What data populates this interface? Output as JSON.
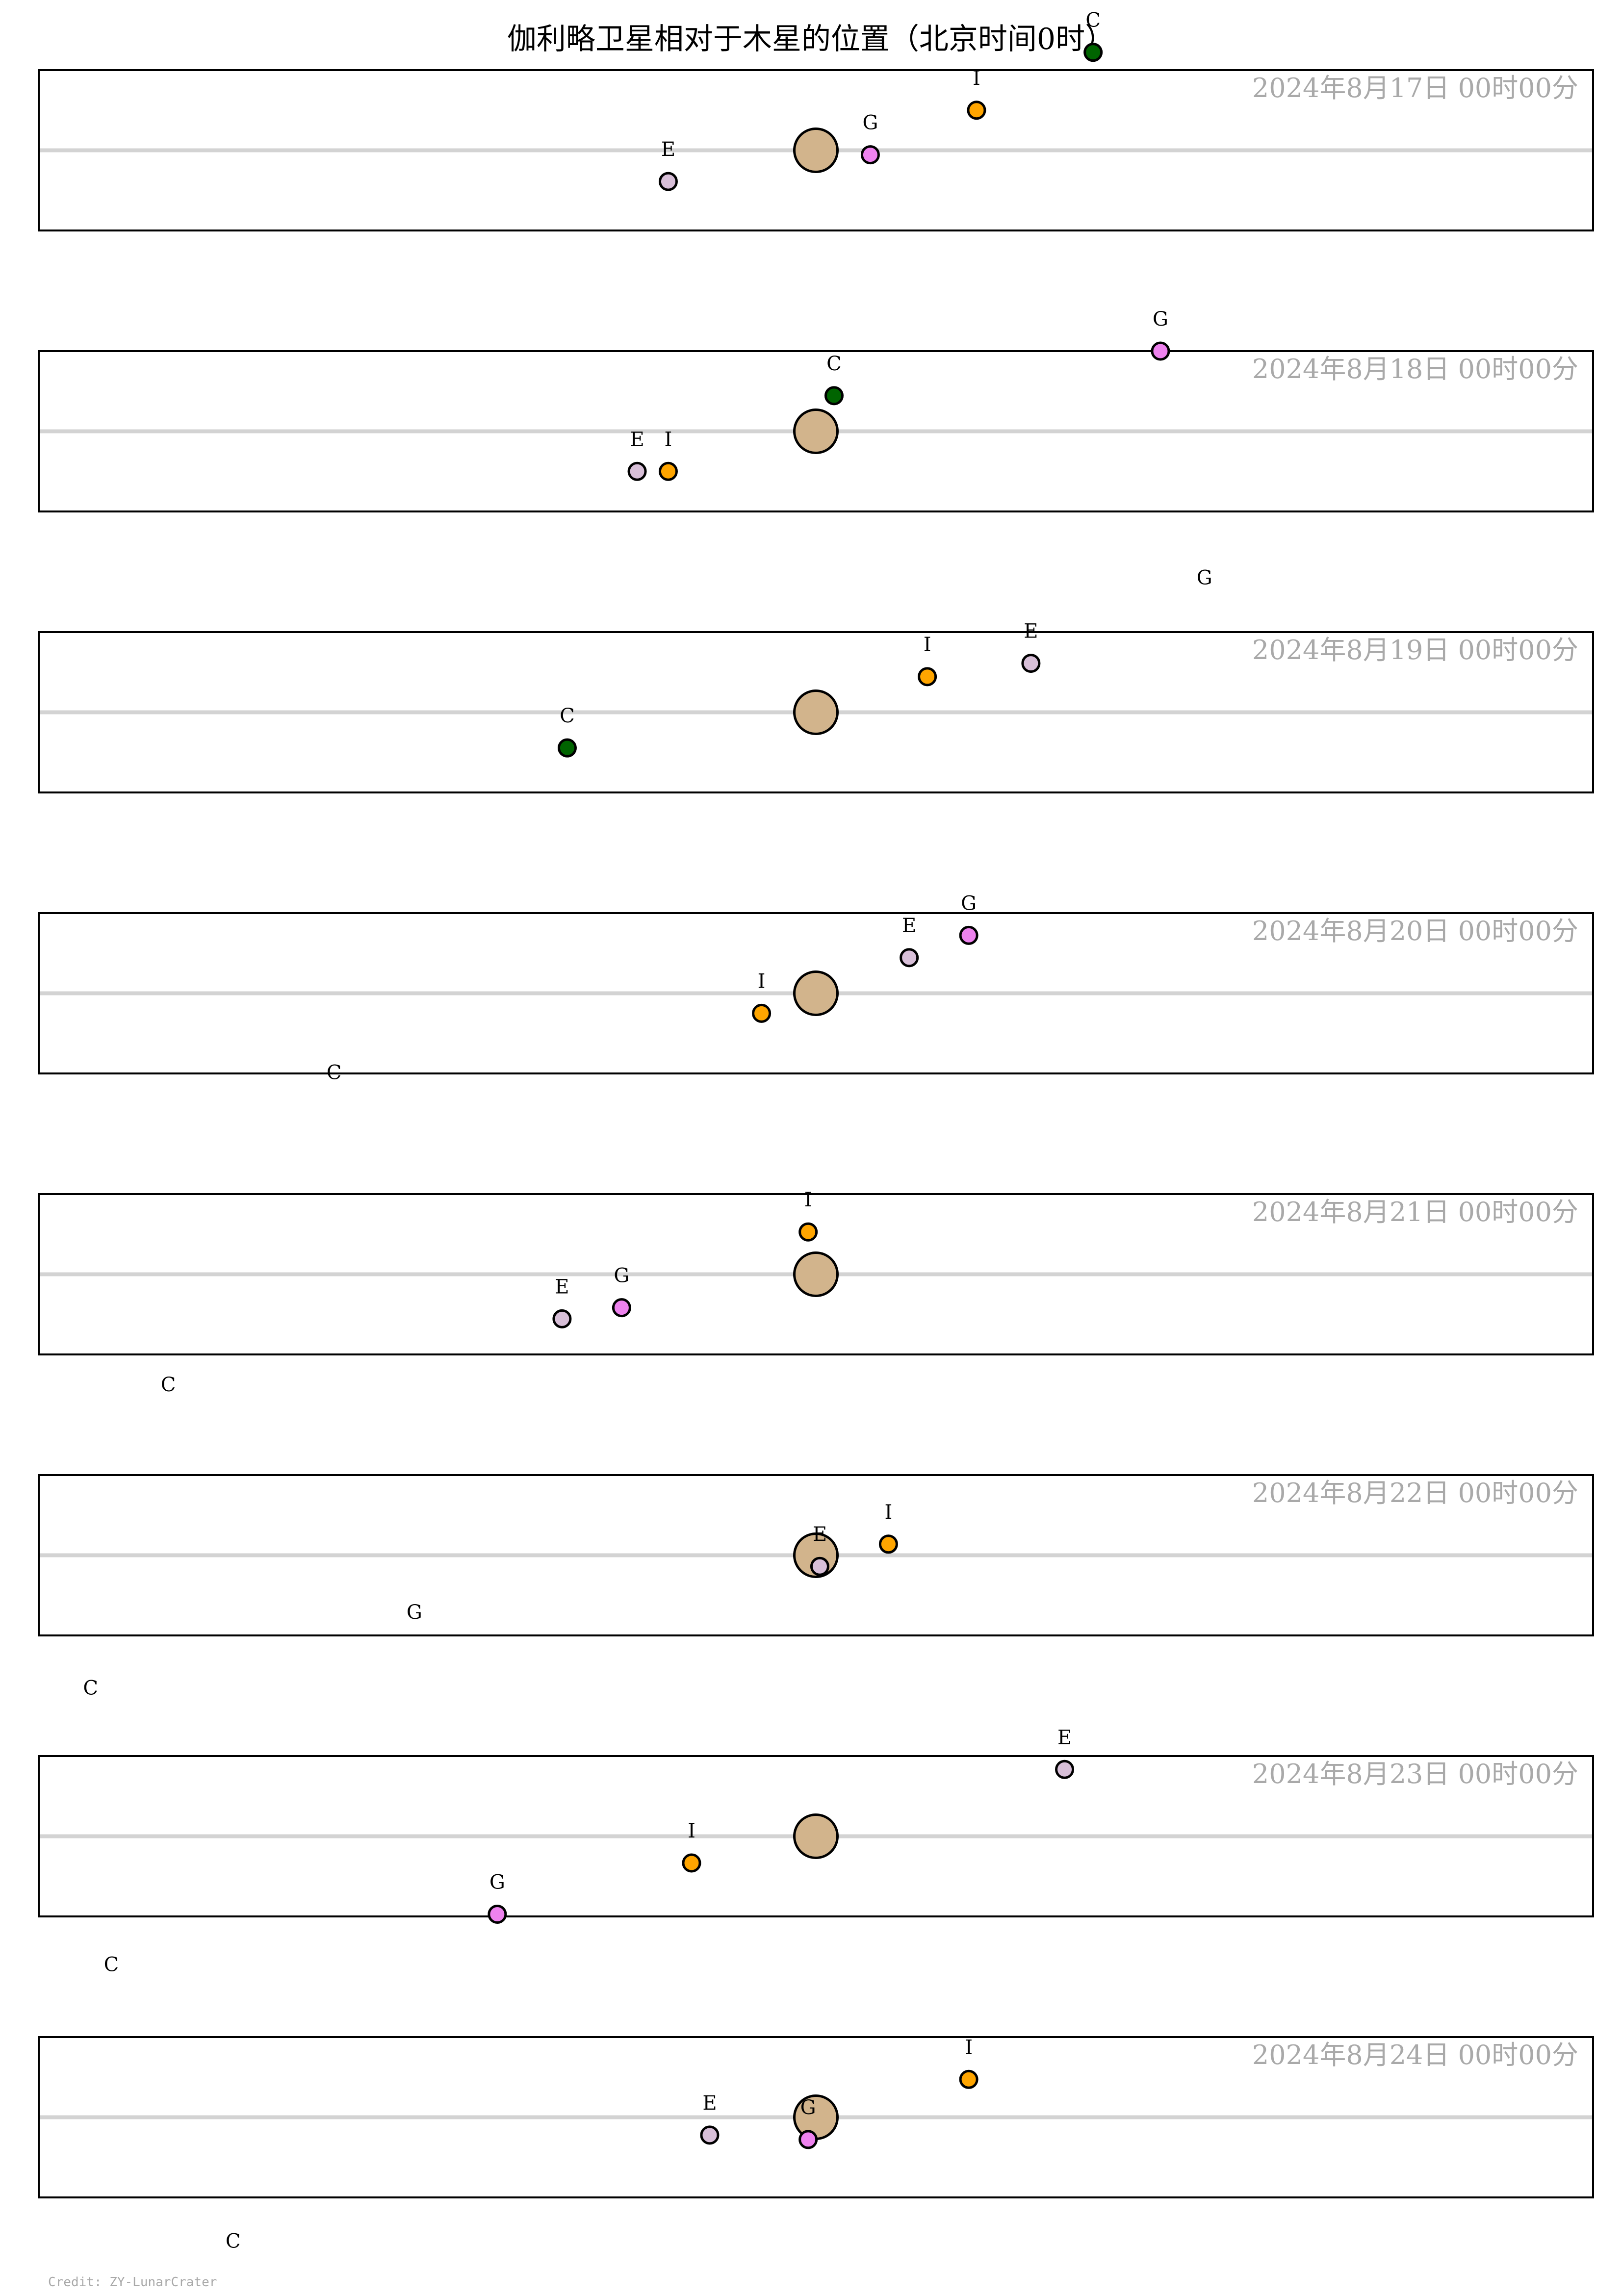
{
  "chart_data": {
    "type": "scatter",
    "title": "伽利略卫星相对于木星的位置（北京时间0时）",
    "credit": "Credit: ZY-LunarCrater",
    "xlim": [
      -30,
      30
    ],
    "ylim": [
      -1.8,
      1.8
    ],
    "grid": false,
    "legend": "none",
    "colors": {
      "jupiter": "#d2b48c",
      "axis_line": "#d3d3d3",
      "frame": "#000000",
      "date_label": "#a9a9a9",
      "credit": "#a9a9a9"
    },
    "moons": [
      {
        "label": "I",
        "color": "#ffa500"
      },
      {
        "label": "E",
        "color": "#d8bfd8"
      },
      {
        "label": "G",
        "color": "#ee82ee"
      },
      {
        "label": "C",
        "color": "#006400"
      }
    ],
    "jupiter": {
      "x": 0,
      "y": 0
    },
    "panels": [
      {
        "date_label": "2024年8月17日  00时00分",
        "moons": [
          {
            "label": "I",
            "x": 6.2,
            "y": 0.9
          },
          {
            "label": "E",
            "x": -5.7,
            "y": -0.7
          },
          {
            "label": "G",
            "x": 2.1,
            "y": -0.1
          },
          {
            "label": "C",
            "x": 10.7,
            "y": 2.2
          }
        ]
      },
      {
        "date_label": "2024年8月18日  00时00分",
        "moons": [
          {
            "label": "I",
            "x": -5.7,
            "y": -0.9
          },
          {
            "label": "E",
            "x": -6.9,
            "y": -0.9
          },
          {
            "label": "G",
            "x": 13.3,
            "y": 1.8
          },
          {
            "label": "C",
            "x": 0.7,
            "y": 0.8
          }
        ]
      },
      {
        "date_label": "2024年8月19日  00时00分",
        "moons": [
          {
            "label": "I",
            "x": 4.3,
            "y": 0.8
          },
          {
            "label": "E",
            "x": 8.3,
            "y": 1.1
          },
          {
            "label": "G",
            "x": 15.0,
            "y": 2.3
          },
          {
            "label": "C",
            "x": -9.6,
            "y": -0.8
          }
        ]
      },
      {
        "date_label": "2024年8月20日  00时00分",
        "moons": [
          {
            "label": "I",
            "x": -2.1,
            "y": -0.45
          },
          {
            "label": "E",
            "x": 3.6,
            "y": 0.8
          },
          {
            "label": "G",
            "x": 5.9,
            "y": 1.3
          },
          {
            "label": "C",
            "x": -18.6,
            "y": -2.5
          }
        ]
      },
      {
        "date_label": "2024年8月21日  00时00分",
        "moons": [
          {
            "label": "I",
            "x": -0.3,
            "y": 0.95
          },
          {
            "label": "E",
            "x": -9.8,
            "y": -1.0
          },
          {
            "label": "G",
            "x": -7.5,
            "y": -0.75
          },
          {
            "label": "C",
            "x": -25.0,
            "y": -3.2
          }
        ]
      },
      {
        "date_label": "2024年8月22日  00时00分",
        "moons": [
          {
            "label": "I",
            "x": 2.8,
            "y": 0.25
          },
          {
            "label": "E",
            "x": 0.15,
            "y": -0.25
          },
          {
            "label": "G",
            "x": -15.5,
            "y": -2.0
          },
          {
            "label": "C",
            "x": -28.0,
            "y": -3.7
          }
        ]
      },
      {
        "date_label": "2024年8月23日  00时00分",
        "moons": [
          {
            "label": "I",
            "x": -4.8,
            "y": -0.6
          },
          {
            "label": "E",
            "x": 9.6,
            "y": 1.5
          },
          {
            "label": "G",
            "x": -12.3,
            "y": -1.75
          },
          {
            "label": "C",
            "x": -27.2,
            "y": -3.6
          }
        ]
      },
      {
        "date_label": "2024年8月24日  00时00分",
        "moons": [
          {
            "label": "I",
            "x": 5.9,
            "y": 0.85
          },
          {
            "label": "E",
            "x": -4.1,
            "y": -0.4
          },
          {
            "label": "G",
            "x": -0.3,
            "y": -0.5
          },
          {
            "label": "C",
            "x": -22.5,
            "y": -3.5
          }
        ]
      }
    ]
  }
}
